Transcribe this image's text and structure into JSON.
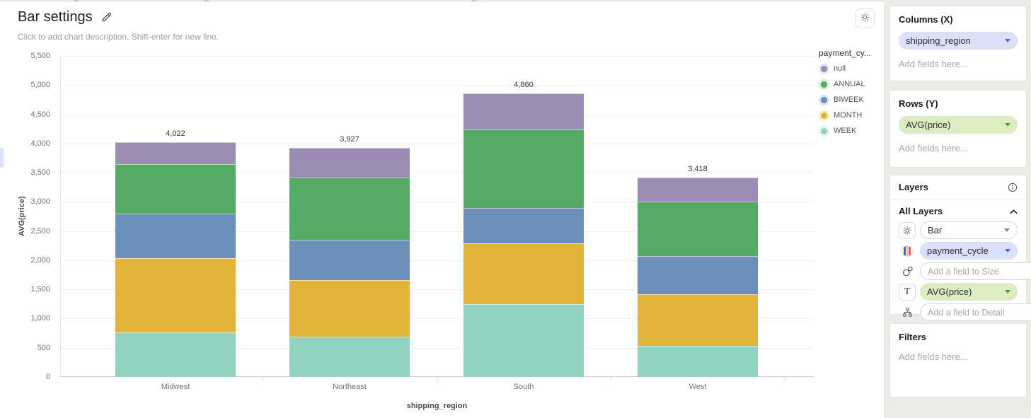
{
  "header": {
    "title": "Bar settings",
    "subtitle": "Click to add chart description. Shift-enter for new line."
  },
  "chart_data": {
    "type": "bar",
    "stacked": true,
    "xlabel": "shipping_region",
    "ylabel": "AVG(price)",
    "categories": [
      "Midwest",
      "Northeast",
      "South",
      "West"
    ],
    "series": [
      {
        "name": "null",
        "color": "#9c8cb4",
        "values": [
          372,
          507,
          620,
          408
        ]
      },
      {
        "name": "ANNUAL",
        "color": "#55ab66",
        "values": [
          850,
          1070,
          1340,
          940
        ]
      },
      {
        "name": "BIWEEK",
        "color": "#6d90ba",
        "values": [
          760,
          690,
          610,
          650
        ]
      },
      {
        "name": "MONTH",
        "color": "#e2b53a",
        "values": [
          1280,
          970,
          1040,
          890
        ]
      },
      {
        "name": "WEEK",
        "color": "#92d2c0",
        "values": [
          760,
          690,
          1250,
          530
        ]
      }
    ],
    "stack_order_bottom_to_top": [
      "WEEK",
      "MONTH",
      "BIWEEK",
      "ANNUAL",
      "null"
    ],
    "totals": [
      4022,
      3927,
      4860,
      3418
    ],
    "total_labels": [
      "4,022",
      "3,927",
      "4,860",
      "3,418"
    ],
    "ylim": [
      0,
      5500
    ],
    "ytick_step": 500,
    "legend_title": "payment_cy...",
    "legend_position": "right",
    "grid": "horizontal"
  },
  "panel": {
    "columns": {
      "header": "Columns (X)",
      "field": "shipping_region",
      "placeholder": "Add fields here..."
    },
    "rows": {
      "header": "Rows (Y)",
      "field": "AVG(price)",
      "placeholder": "Add fields here..."
    },
    "layers": {
      "header": "Layers",
      "group": "All Layers",
      "type_label": "Bar",
      "color_field": "payment_cycle",
      "size_placeholder": "Add a field to Size",
      "label_field": "AVG(price)",
      "detail_placeholder": "Add a field to Detail"
    },
    "filters": {
      "header": "Filters",
      "placeholder": "Add fields here..."
    }
  },
  "colors": {
    "lavender_pill": "#dbe1f8",
    "green_pill": "#dcedc2",
    "pill_caret_blue": "#4968d6",
    "pill_caret_green": "#4c9e3d",
    "panel_bg": "#eaece8"
  }
}
